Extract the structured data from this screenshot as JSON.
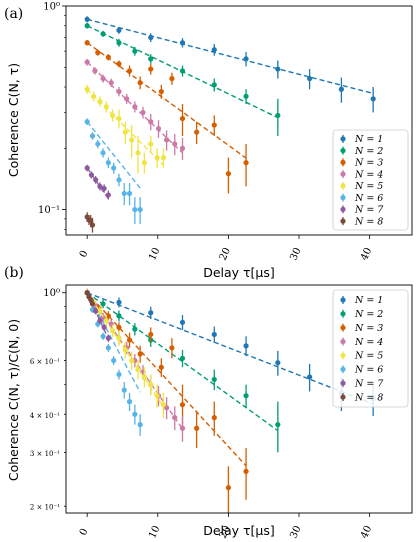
{
  "chart_data": [
    {
      "panel_label": "(a)",
      "type": "scatter",
      "xlabel": "Delay τ[μs]",
      "ylabel": "Coherence C(N, τ)",
      "xlim": [
        -3,
        46
      ],
      "ylim": [
        0.075,
        1.0
      ],
      "yscale": "log",
      "x_ticks": [
        0,
        10,
        20,
        30,
        40
      ],
      "y_ticks": [
        {
          "value": 1.0,
          "label": "10⁰",
          "major": true
        },
        {
          "value": 0.1,
          "label": "10⁻¹",
          "major": true
        }
      ],
      "legend_position": "lower right",
      "series": [
        {
          "name": "N = 1",
          "color": "#1f77b4",
          "fit": [
            0.86,
            0.0207
          ],
          "x": [
            0,
            4.5,
            9,
            13.5,
            18,
            22.5,
            27,
            31.5,
            36,
            40.5
          ],
          "y": [
            0.86,
            0.76,
            0.7,
            0.66,
            0.61,
            0.55,
            0.49,
            0.44,
            0.39,
            0.35
          ],
          "err": [
            0.03,
            0.03,
            0.035,
            0.035,
            0.04,
            0.045,
            0.05,
            0.05,
            0.055,
            0.05
          ]
        },
        {
          "name": "N = 2",
          "color": "#009e73",
          "fit": [
            0.8,
            0.0385
          ],
          "x": [
            0,
            2.25,
            4.5,
            6.75,
            9,
            13.5,
            18,
            22.5,
            27
          ],
          "y": [
            0.8,
            0.73,
            0.66,
            0.6,
            0.55,
            0.48,
            0.41,
            0.36,
            0.29
          ],
          "err": [
            0.025,
            0.025,
            0.03,
            0.03,
            0.03,
            0.03,
            0.03,
            0.03,
            0.06
          ]
        },
        {
          "name": "N = 3",
          "color": "#d55e00",
          "fit": [
            0.66,
            0.058
          ],
          "x": [
            0,
            1.5,
            3,
            4.5,
            6,
            7.5,
            9,
            10.5,
            12,
            13.5,
            15.5,
            18,
            20,
            22.5
          ],
          "y": [
            0.66,
            0.59,
            0.56,
            0.52,
            0.48,
            0.42,
            0.49,
            0.38,
            0.44,
            0.28,
            0.24,
            0.26,
            0.15,
            0.17
          ],
          "err": [
            0.02,
            0.02,
            0.02,
            0.02,
            0.03,
            0.03,
            0.03,
            0.03,
            0.03,
            0.05,
            0.03,
            0.03,
            0.03,
            0.04
          ]
        },
        {
          "name": "N = 4",
          "color": "#cc79a7",
          "fit": [
            0.53,
            0.076
          ],
          "x": [
            0,
            1.1,
            2.25,
            3.4,
            4.5,
            5.6,
            6.75,
            7.9,
            9,
            10.1,
            11.25,
            12.4,
            13.5
          ],
          "y": [
            0.53,
            0.48,
            0.44,
            0.42,
            0.38,
            0.35,
            0.32,
            0.3,
            0.27,
            0.25,
            0.22,
            0.21,
            0.2
          ],
          "err": [
            0.02,
            0.02,
            0.02,
            0.02,
            0.02,
            0.02,
            0.02,
            0.02,
            0.025,
            0.025,
            0.025,
            0.025,
            0.025
          ]
        },
        {
          "name": "N = 5",
          "color": "#f0e442",
          "fit": [
            0.39,
            0.0795
          ],
          "x": [
            0,
            0.9,
            1.8,
            2.7,
            3.6,
            4.5,
            5.4,
            6.3,
            7.2,
            8.1,
            9,
            9.9,
            10.8
          ],
          "y": [
            0.39,
            0.36,
            0.34,
            0.32,
            0.29,
            0.28,
            0.24,
            0.22,
            0.19,
            0.17,
            0.21,
            0.18,
            0.18
          ],
          "err": [
            0.02,
            0.02,
            0.02,
            0.02,
            0.02,
            0.03,
            0.03,
            0.04,
            0.04,
            0.02,
            0.02,
            0.02,
            0.02
          ]
        },
        {
          "name": "N = 6",
          "color": "#56b4e9",
          "fit": [
            0.27,
            0.1
          ],
          "x": [
            0,
            0.75,
            1.5,
            2.25,
            3,
            3.75,
            4.5,
            5.25,
            6,
            6.75,
            7.5
          ],
          "y": [
            0.27,
            0.23,
            0.21,
            0.19,
            0.17,
            0.16,
            0.14,
            0.12,
            0.12,
            0.1,
            0.1
          ],
          "err": [
            0.01,
            0.01,
            0.01,
            0.01,
            0.01,
            0.01,
            0.01,
            0.015,
            0.015,
            0.015,
            0.015
          ]
        },
        {
          "name": "N = 7",
          "color": "#8e5a9f",
          "fit": [
            0.16,
            0.116
          ],
          "x": [
            0,
            0.6,
            1.2,
            1.8,
            2.4,
            3
          ],
          "y": [
            0.16,
            0.148,
            0.14,
            0.13,
            0.127,
            0.118
          ],
          "err": [
            0.006,
            0.006,
            0.006,
            0.006,
            0.006,
            0.006
          ]
        },
        {
          "name": "N = 8",
          "color": "#7b4a3a",
          "fit": null,
          "x": [
            0,
            0.25,
            0.5,
            0.75
          ],
          "y": [
            0.092,
            0.089,
            0.088,
            0.084
          ],
          "err": [
            0.005,
            0.005,
            0.006,
            0.007
          ]
        }
      ]
    },
    {
      "panel_label": "(b)",
      "type": "scatter",
      "xlabel": "Delay τ[μs]",
      "ylabel": "Coherence C(N, τ)/C(N, 0)",
      "xlim": [
        -3,
        46
      ],
      "ylim": [
        0.19,
        1.06
      ],
      "yscale": "log",
      "x_ticks": [
        0,
        10,
        20,
        30,
        40
      ],
      "y_ticks": [
        {
          "value": 1.0,
          "label": "10⁰",
          "major": true
        },
        {
          "value": 0.6,
          "label": "6 × 10⁻¹",
          "major": false
        },
        {
          "value": 0.4,
          "label": "4 × 10⁻¹",
          "major": false
        },
        {
          "value": 0.3,
          "label": "3 × 10⁻¹",
          "major": false
        },
        {
          "value": 0.2,
          "label": "2 × 10⁻¹",
          "major": false
        }
      ],
      "legend_position": "upper right",
      "series": [
        {
          "name": "N = 1",
          "color": "#1f77b4",
          "fit": [
            1.0,
            0.0207
          ],
          "x": [
            0,
            4.5,
            9,
            13.5,
            18,
            22.5,
            27,
            31.5,
            36,
            40.5
          ],
          "y": [
            1.0,
            0.93,
            0.86,
            0.8,
            0.73,
            0.67,
            0.59,
            0.53,
            0.47,
            0.45
          ],
          "err": [
            0.03,
            0.035,
            0.04,
            0.045,
            0.045,
            0.05,
            0.055,
            0.055,
            0.06,
            0.055
          ]
        },
        {
          "name": "N = 2",
          "color": "#009e73",
          "fit": [
            1.0,
            0.0385
          ],
          "x": [
            0,
            2.25,
            4.5,
            6.75,
            9,
            13.5,
            18,
            22.5,
            27
          ],
          "y": [
            1.0,
            0.92,
            0.84,
            0.76,
            0.7,
            0.61,
            0.52,
            0.46,
            0.37
          ],
          "err": [
            0.03,
            0.03,
            0.035,
            0.035,
            0.035,
            0.04,
            0.04,
            0.04,
            0.07
          ]
        },
        {
          "name": "N = 3",
          "color": "#d55e00",
          "fit": [
            1.0,
            0.058
          ],
          "x": [
            0,
            1.5,
            3,
            4.5,
            6,
            7.5,
            9,
            10.5,
            12,
            13.5,
            15.5,
            18,
            20,
            22.5
          ],
          "y": [
            1.0,
            0.89,
            0.84,
            0.77,
            0.7,
            0.63,
            0.73,
            0.57,
            0.66,
            0.43,
            0.36,
            0.39,
            0.23,
            0.26
          ],
          "err": [
            0.03,
            0.03,
            0.03,
            0.03,
            0.04,
            0.04,
            0.04,
            0.04,
            0.05,
            0.07,
            0.05,
            0.05,
            0.04,
            0.05
          ]
        },
        {
          "name": "N = 4",
          "color": "#cc79a7",
          "fit": [
            1.0,
            0.076
          ],
          "x": [
            0,
            1.1,
            2.25,
            3.4,
            4.5,
            5.6,
            6.75,
            7.9,
            9,
            10.1,
            11.25,
            12.4,
            13.5
          ],
          "y": [
            1.0,
            0.91,
            0.83,
            0.79,
            0.71,
            0.66,
            0.6,
            0.55,
            0.5,
            0.46,
            0.42,
            0.39,
            0.36
          ],
          "err": [
            0.03,
            0.03,
            0.03,
            0.03,
            0.03,
            0.03,
            0.03,
            0.03,
            0.035,
            0.035,
            0.035,
            0.035,
            0.035
          ]
        },
        {
          "name": "N = 5",
          "color": "#f0e442",
          "fit": [
            1.0,
            0.0795
          ],
          "x": [
            0,
            0.9,
            1.8,
            2.7,
            3.6,
            4.5,
            5.4,
            6.3,
            7.2,
            8.1,
            9,
            9.9,
            10.8
          ],
          "y": [
            1.0,
            0.93,
            0.87,
            0.81,
            0.75,
            0.71,
            0.65,
            0.6,
            0.56,
            0.53,
            0.5,
            0.46,
            0.43
          ],
          "err": [
            0.03,
            0.03,
            0.03,
            0.035,
            0.035,
            0.04,
            0.04,
            0.04,
            0.04,
            0.04,
            0.04,
            0.04,
            0.04
          ]
        },
        {
          "name": "N = 6",
          "color": "#56b4e9",
          "fit": [
            1.0,
            0.1
          ],
          "x": [
            0,
            0.75,
            1.5,
            2.25,
            3,
            3.75,
            4.5,
            5.25,
            6,
            6.75,
            7.5
          ],
          "y": [
            1.0,
            0.88,
            0.79,
            0.72,
            0.66,
            0.6,
            0.54,
            0.48,
            0.44,
            0.4,
            0.37
          ],
          "err": [
            0.02,
            0.02,
            0.02,
            0.02,
            0.02,
            0.02,
            0.02,
            0.03,
            0.03,
            0.03,
            0.03
          ]
        },
        {
          "name": "N = 7",
          "color": "#8e5a9f",
          "fit": [
            1.0,
            0.116
          ],
          "x": [
            0,
            0.6,
            1.2,
            1.8,
            2.4,
            3
          ],
          "y": [
            1.0,
            0.94,
            0.87,
            0.81,
            0.77,
            0.71
          ],
          "err": [
            0.02,
            0.02,
            0.02,
            0.02,
            0.02,
            0.02
          ]
        },
        {
          "name": "N = 8",
          "color": "#7b4a3a",
          "fit": null,
          "x": [
            0,
            0.25,
            0.5,
            0.75
          ],
          "y": [
            1.0,
            0.97,
            0.95,
            0.92
          ],
          "err": [
            0.02,
            0.02,
            0.02,
            0.02
          ]
        }
      ]
    }
  ]
}
